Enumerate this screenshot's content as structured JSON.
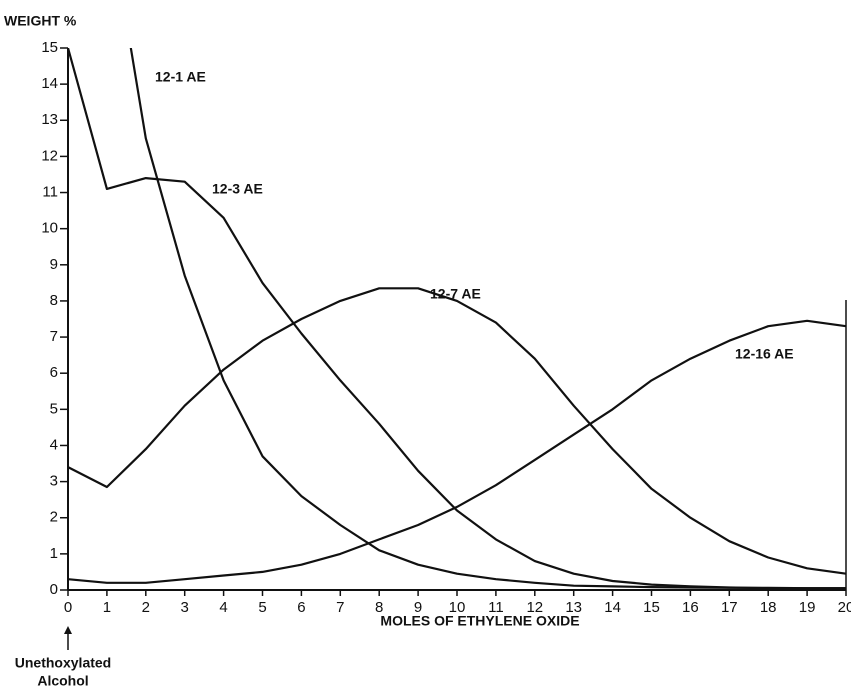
{
  "chart_data": {
    "type": "line",
    "y_label": "WEIGHT %",
    "x_label": "MOLES OF ETHYLENE OXIDE",
    "annotation": [
      "Unethoxylated",
      "Alcohol"
    ],
    "x": [
      0,
      1,
      2,
      3,
      4,
      5,
      6,
      7,
      8,
      9,
      10,
      11,
      12,
      13,
      14,
      15,
      16,
      17,
      18,
      19,
      20
    ],
    "series": [
      {
        "name": "12-1 AE",
        "color": "#111111",
        "values": [
          null,
          19,
          12.5,
          8.7,
          5.8,
          3.7,
          2.6,
          1.8,
          1.1,
          0.7,
          0.45,
          0.3,
          0.2,
          0.12,
          0.1,
          0.08,
          0.07,
          0.06,
          0.06,
          0.05,
          0.05
        ]
      },
      {
        "name": "12-3 AE",
        "color": "#111111",
        "values": [
          15,
          11.1,
          11.4,
          11.3,
          10.3,
          8.5,
          7.1,
          5.8,
          4.6,
          3.3,
          2.2,
          1.4,
          0.8,
          0.45,
          0.25,
          0.15,
          0.1,
          0.07,
          0.05,
          0.05,
          0.05
        ]
      },
      {
        "name": "12-7 AE",
        "color": "#111111",
        "values": [
          3.4,
          2.85,
          3.9,
          5.1,
          6.1,
          6.9,
          7.5,
          8.0,
          8.35,
          8.35,
          8.0,
          7.4,
          6.4,
          5.1,
          3.9,
          2.8,
          2.0,
          1.35,
          0.9,
          0.6,
          0.45
        ]
      },
      {
        "name": "12-16 AE",
        "color": "#111111",
        "values": [
          0.3,
          0.2,
          0.2,
          0.3,
          0.4,
          0.5,
          0.7,
          1.0,
          1.4,
          1.8,
          2.3,
          2.9,
          3.6,
          4.3,
          5.0,
          5.8,
          6.4,
          6.9,
          7.3,
          7.45,
          7.3
        ]
      }
    ],
    "xlim": [
      0,
      20
    ],
    "ylim": [
      0,
      15
    ],
    "xticks": [
      0,
      1,
      2,
      3,
      4,
      5,
      6,
      7,
      8,
      9,
      10,
      11,
      12,
      13,
      14,
      15,
      16,
      17,
      18,
      19,
      20
    ],
    "yticks": [
      0,
      1,
      2,
      3,
      4,
      5,
      6,
      7,
      8,
      9,
      10,
      11,
      12,
      13,
      14,
      15
    ],
    "grid": false
  }
}
